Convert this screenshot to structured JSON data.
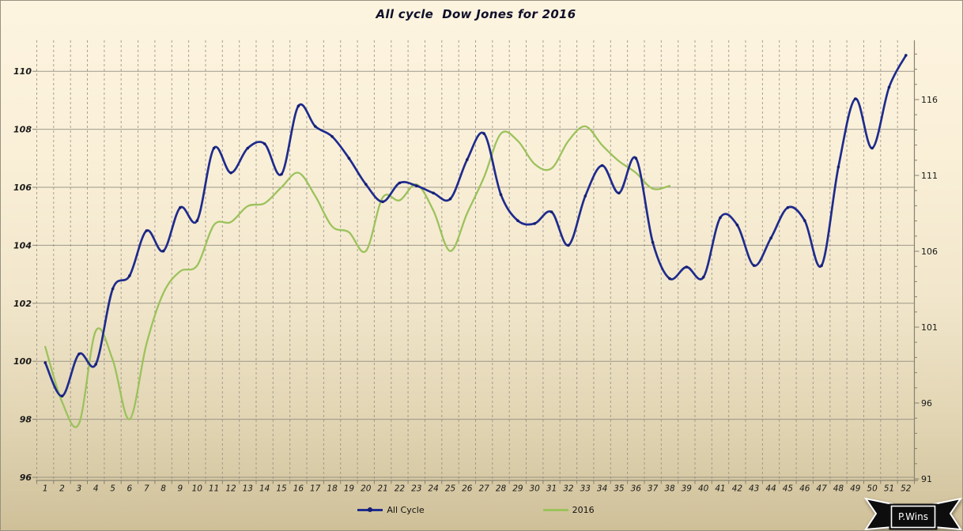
{
  "chart_data": {
    "type": "line",
    "title": "All cycle  Dow Jones for 2016",
    "x_categories": [
      "1",
      "2",
      "3",
      "4",
      "5",
      "6",
      "7",
      "8",
      "9",
      "10",
      "11",
      "12",
      "13",
      "14",
      "15",
      "16",
      "17",
      "18",
      "19",
      "20",
      "21",
      "22",
      "23",
      "24",
      "25",
      "26",
      "27",
      "28",
      "29",
      "30",
      "31",
      "32",
      "33",
      "34",
      "35",
      "36",
      "37",
      "38",
      "39",
      "40",
      "41",
      "42",
      "43",
      "44",
      "45",
      "46",
      "47",
      "48",
      "49",
      "50",
      "51",
      "52"
    ],
    "series": [
      {
        "name": "All Cycle",
        "color": "#1f2b8d",
        "marker_color": "#141f70",
        "markers": true,
        "values": [
          99.95,
          98.8,
          100.25,
          99.9,
          102.5,
          102.95,
          104.5,
          103.8,
          105.3,
          104.85,
          107.35,
          106.5,
          107.35,
          107.5,
          106.45,
          108.8,
          108.1,
          107.75,
          107.0,
          106.1,
          105.5,
          106.15,
          106.05,
          105.8,
          105.6,
          106.95,
          107.85,
          105.75,
          104.85,
          104.75,
          105.15,
          104.0,
          105.7,
          106.75,
          105.8,
          107.0,
          104.1,
          102.85,
          103.25,
          102.9,
          104.95,
          104.7,
          103.3,
          104.25,
          105.3,
          104.85,
          103.3,
          106.7,
          109.05,
          107.35,
          109.45,
          110.55
        ]
      },
      {
        "name": "2016",
        "color": "#9cc25c",
        "markers": false,
        "values": [
          100.5,
          98.6,
          97.85,
          101.05,
          100.05,
          98.0,
          100.6,
          102.35,
          103.1,
          103.3,
          104.7,
          104.8,
          105.35,
          105.45,
          106.0,
          106.5,
          105.7,
          104.65,
          104.45,
          103.8,
          105.65,
          105.55,
          106.1,
          105.2,
          103.8,
          105.1,
          106.35,
          107.85,
          107.6,
          106.8,
          106.65,
          107.6,
          108.1,
          107.45,
          106.9,
          106.5,
          105.95,
          106.05
        ]
      }
    ],
    "left_axis": {
      "min": 96,
      "max": 111.1,
      "tick_step": 2,
      "tick_values": [
        110,
        108,
        106,
        104,
        102,
        100,
        98,
        96
      ],
      "tick_labels": [
        "110",
        "108",
        "106",
        "104",
        "102",
        "100",
        "98",
        "96"
      ]
    },
    "right_axis": {
      "min": 91,
      "max": 120,
      "tick_step": 5,
      "minor_step": 1,
      "tick_values": [
        116,
        111,
        106,
        101,
        96,
        91
      ],
      "tick_labels": [
        "116",
        "111",
        "106",
        "101",
        "96",
        "91"
      ]
    },
    "grid": {
      "horizontal": "solid",
      "vertical": "dashed"
    },
    "legend_position": "bottom"
  },
  "legend": {
    "items": [
      {
        "label": "All Cycle",
        "color": "#1f2b8d",
        "marker_color": "#141f70"
      },
      {
        "label": "2016",
        "color": "#9cc25c"
      }
    ]
  },
  "badge": {
    "label": "P.Wins"
  },
  "colors": {
    "background_top": "#fdf4e0",
    "background_bottom": "#cfc099",
    "gridline": "#8f8a80",
    "dashed_gridline": "#938d80",
    "axis": "#87816f",
    "text": "#1a1a1a"
  }
}
